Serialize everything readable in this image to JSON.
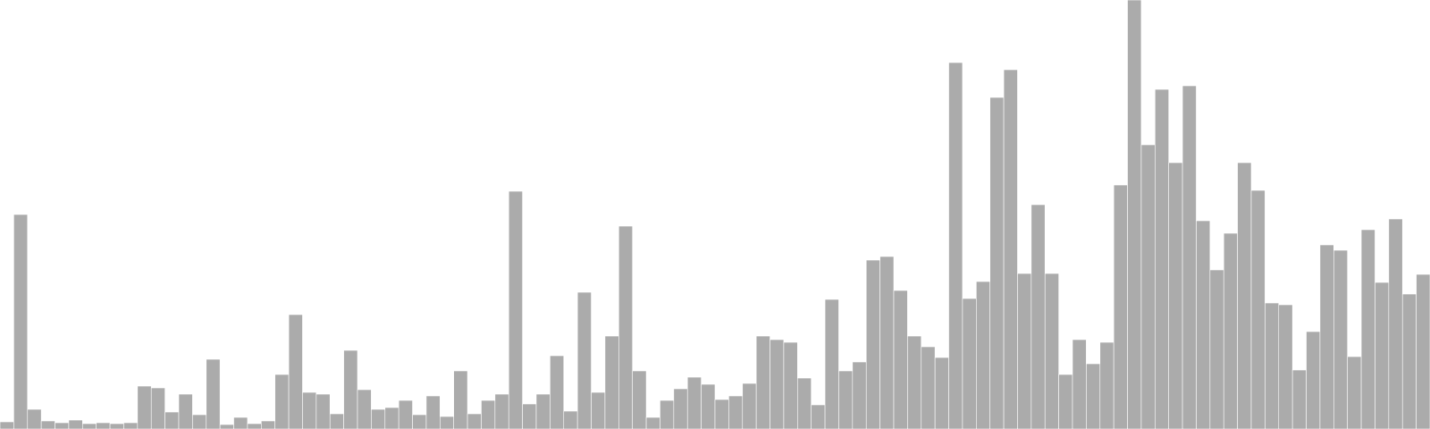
{
  "chart_data": {
    "type": "bar",
    "title": "",
    "xlabel": "",
    "ylabel": "",
    "grid": false,
    "bar_color": "#ababab",
    "background": "#ffffff",
    "ylim": [
      0,
      480
    ],
    "values": [
      8,
      240,
      22,
      9,
      7,
      10,
      6,
      7,
      6,
      7,
      48,
      46,
      19,
      39,
      16,
      78,
      5,
      13,
      6,
      9,
      61,
      128,
      41,
      39,
      17,
      88,
      44,
      22,
      24,
      32,
      16,
      37,
      14,
      65,
      17,
      32,
      39,
      266,
      28,
      39,
      82,
      20,
      153,
      41,
      104,
      227,
      65,
      13,
      32,
      45,
      58,
      50,
      33,
      37,
      51,
      104,
      100,
      97,
      57,
      27,
      145,
      65,
      75,
      189,
      193,
      155,
      104,
      92,
      80,
      410,
      146,
      165,
      371,
      402,
      174,
      251,
      174,
      61,
      100,
      73,
      97,
      273,
      480,
      318,
      380,
      298,
      384,
      233,
      178,
      219,
      298,
      267,
      141,
      139,
      66,
      109,
      206,
      200,
      81,
      223,
      164,
      235,
      151,
      173
    ]
  }
}
